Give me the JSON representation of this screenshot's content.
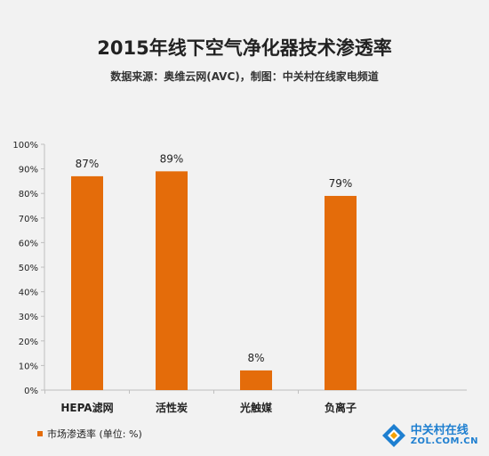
{
  "colors": {
    "bar": "#e46c0a",
    "axis": "#bfbfbf",
    "text": "#222222"
  },
  "chart_data": {
    "type": "bar",
    "title": "2015年线下空气净化器技术渗透率",
    "subtitle": "数据来源：奥维云网(AVC)，制图：中关村在线家电频道",
    "categories": [
      "HEPA滤网",
      "活性炭",
      "光触媒",
      "负离子"
    ],
    "series": [
      {
        "name": "市场渗透率 (单位: %)",
        "values": [
          87,
          89,
          8,
          79
        ]
      }
    ],
    "data_labels": [
      "87%",
      "89%",
      "8%",
      "79%"
    ],
    "y_ticks": [
      "0%",
      "10%",
      "20%",
      "30%",
      "40%",
      "50%",
      "60%",
      "70%",
      "80%",
      "90%",
      "100%"
    ],
    "ylim": [
      0,
      100
    ],
    "legend_position": "bottom-left",
    "grid": false
  },
  "watermark": {
    "icon": "zol-logo-icon",
    "name_cn": "中关村在线",
    "name_en": "ZOL.COM.CN"
  }
}
